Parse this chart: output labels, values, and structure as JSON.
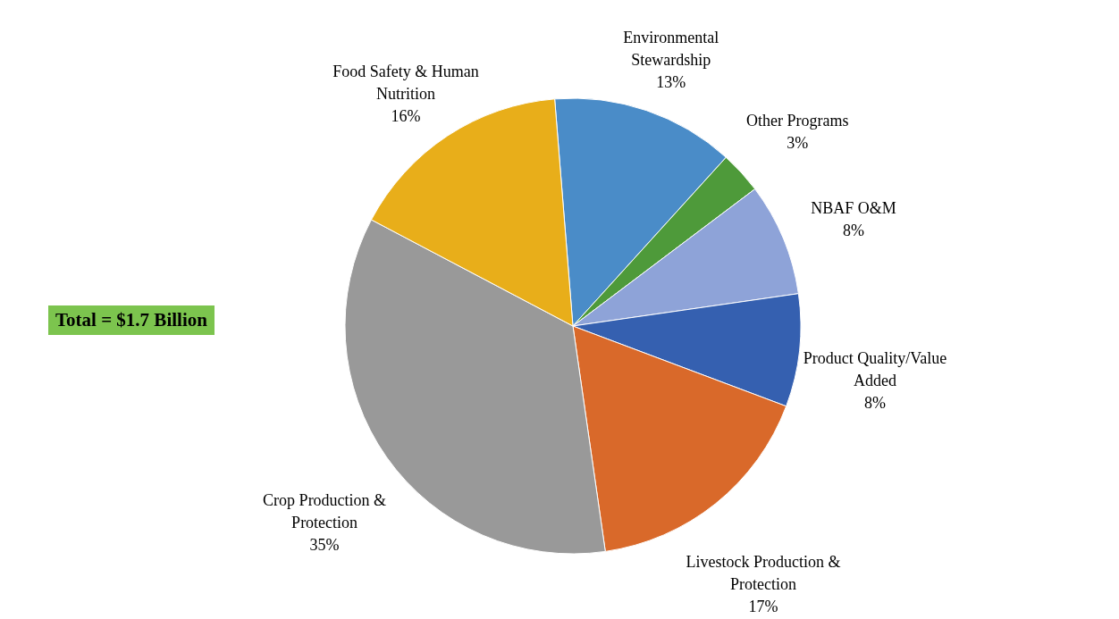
{
  "chart_data": {
    "type": "pie",
    "categories": [
      "Environmental Stewardship",
      "Other Programs",
      "NBAF O&M",
      "Product Quality/Value Added",
      "Livestock Production & Protection",
      "Crop Production & Protection",
      "Food Safety & Human Nutrition"
    ],
    "values": [
      13,
      3,
      8,
      8,
      17,
      35,
      16
    ],
    "value_labels": [
      "13%",
      "3%",
      "8%",
      "8%",
      "17%",
      "35%",
      "16%"
    ],
    "colors": [
      "#4a8cc8",
      "#4e9a3a",
      "#8ea3d8",
      "#3560b0",
      "#d9692a",
      "#999999",
      "#e8ae1a"
    ],
    "annotations": [
      "Total = $1.7 Billion"
    ]
  }
}
